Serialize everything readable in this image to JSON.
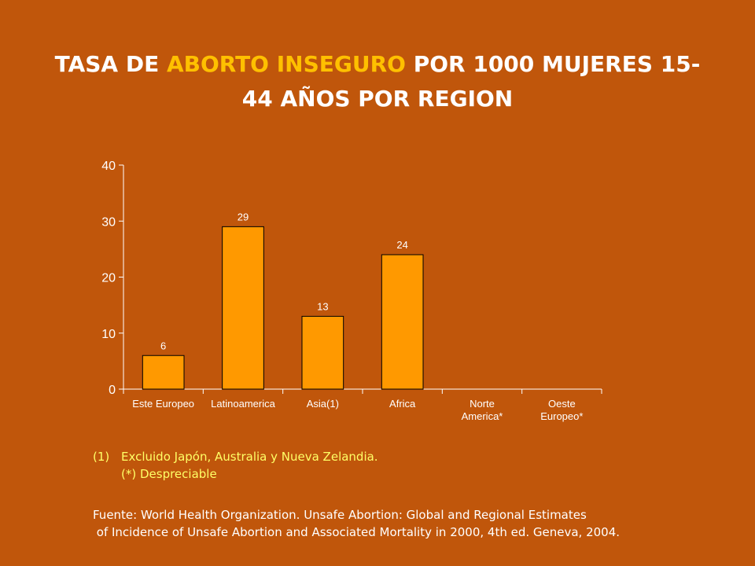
{
  "title": {
    "part1": "TASA DE ",
    "highlight": "ABORTO INSEGURO",
    "part2": " POR 1000 MUJERES 15-",
    "line2": "44 AÑOS POR REGION"
  },
  "colors": {
    "background": "#c0560b",
    "bar": "#ff9900",
    "highlight": "#ffc000",
    "notes": "#ffff66"
  },
  "chart_data": {
    "type": "bar",
    "categories": [
      "Este Europeo",
      "Latinoamerica",
      "Asia(1)",
      "Africa",
      "Norte America*",
      "Oeste Europeo*"
    ],
    "values": [
      6,
      29,
      13,
      24,
      null,
      null
    ],
    "data_labels": [
      "6",
      "29",
      "13",
      "24",
      "",
      ""
    ],
    "ylim": [
      0,
      40
    ],
    "yticks": [
      0,
      10,
      20,
      30,
      40
    ],
    "grid": false,
    "legend": "none"
  },
  "notes": {
    "n1_marker": "(1)",
    "n1_text": "Excluido Japón, Australia y Nueva Zelandia.",
    "n2_text": "(*) Despreciable"
  },
  "source": {
    "line1": "Fuente: World Health Organization. Unsafe Abortion: Global and Regional Estimates",
    "line2": " of Incidence of Unsafe Abortion and Associated Mortality in 2000, 4th ed. Geneva, 2004."
  }
}
